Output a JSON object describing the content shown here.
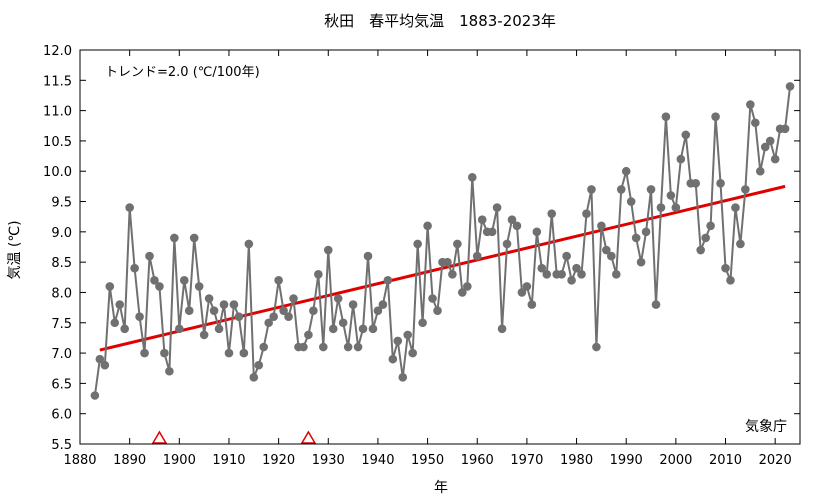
{
  "chart_data": {
    "type": "line",
    "title": "秋田　春平均気温　1883-2023年",
    "xlabel": "年",
    "ylabel": "気温 (℃)",
    "xlim": [
      1880,
      2025
    ],
    "ylim": [
      5.5,
      12.0
    ],
    "x_ticks": [
      1880,
      1890,
      1900,
      1910,
      1920,
      1930,
      1940,
      1950,
      1960,
      1970,
      1980,
      1990,
      2000,
      2010,
      2020
    ],
    "y_ticks": [
      5.5,
      6.0,
      6.5,
      7.0,
      7.5,
      8.0,
      8.5,
      9.0,
      9.5,
      10.0,
      10.5,
      11.0,
      11.5,
      12.0
    ],
    "grid": false,
    "annotation": "トレンド=2.0 (℃/100年)",
    "source": "気象庁",
    "series": [
      {
        "kind": "annual",
        "color": "#707070",
        "x_start": 1883,
        "values": [
          6.3,
          6.9,
          6.8,
          8.1,
          7.5,
          7.8,
          7.4,
          9.4,
          8.4,
          7.6,
          7.0,
          8.6,
          8.2,
          8.1,
          7.0,
          6.7,
          8.9,
          7.4,
          8.2,
          7.7,
          8.9,
          8.1,
          7.3,
          7.9,
          7.7,
          7.4,
          7.8,
          7.0,
          7.8,
          7.6,
          7.0,
          8.8,
          6.6,
          6.8,
          7.1,
          7.5,
          7.6,
          8.2,
          7.7,
          7.6,
          7.9,
          7.1,
          7.1,
          7.3,
          7.7,
          8.3,
          7.1,
          8.7,
          7.4,
          7.9,
          7.5,
          7.1,
          7.8,
          7.1,
          7.4,
          8.6,
          7.4,
          7.7,
          7.8,
          8.2,
          6.9,
          7.2,
          6.6,
          7.3,
          7.0,
          8.8,
          7.5,
          9.1,
          7.9,
          7.7,
          8.5,
          8.5,
          8.3,
          8.8,
          8.0,
          8.1,
          9.9,
          8.6,
          9.2,
          9.0,
          9.0,
          9.4,
          7.4,
          8.8,
          9.2,
          9.1,
          8.0,
          8.1,
          7.8,
          9.0,
          8.4,
          8.3,
          9.3,
          8.3,
          8.3,
          8.6,
          8.2,
          8.4,
          8.3,
          9.3,
          9.7,
          7.1,
          9.1,
          8.7,
          8.6,
          8.3,
          9.7,
          10.0,
          9.5,
          8.9,
          8.5,
          9.0,
          9.7,
          7.8,
          9.4,
          10.9,
          9.6,
          9.4,
          10.2,
          10.6,
          9.8,
          9.8,
          8.7,
          8.9,
          9.1,
          10.9,
          9.8,
          8.4,
          8.2,
          9.4,
          8.8,
          9.7,
          11.1,
          10.8,
          10.0,
          10.4,
          10.5,
          10.2,
          10.7,
          10.7,
          11.4
        ]
      },
      {
        "kind": "trend",
        "color": "#e00000",
        "x": [
          1884,
          2022
        ],
        "values": [
          7.05,
          9.75
        ]
      }
    ],
    "markers": {
      "kind": "station-relocation",
      "shape": "triangle",
      "color": "#e00000",
      "x": [
        1896,
        1926
      ]
    }
  }
}
